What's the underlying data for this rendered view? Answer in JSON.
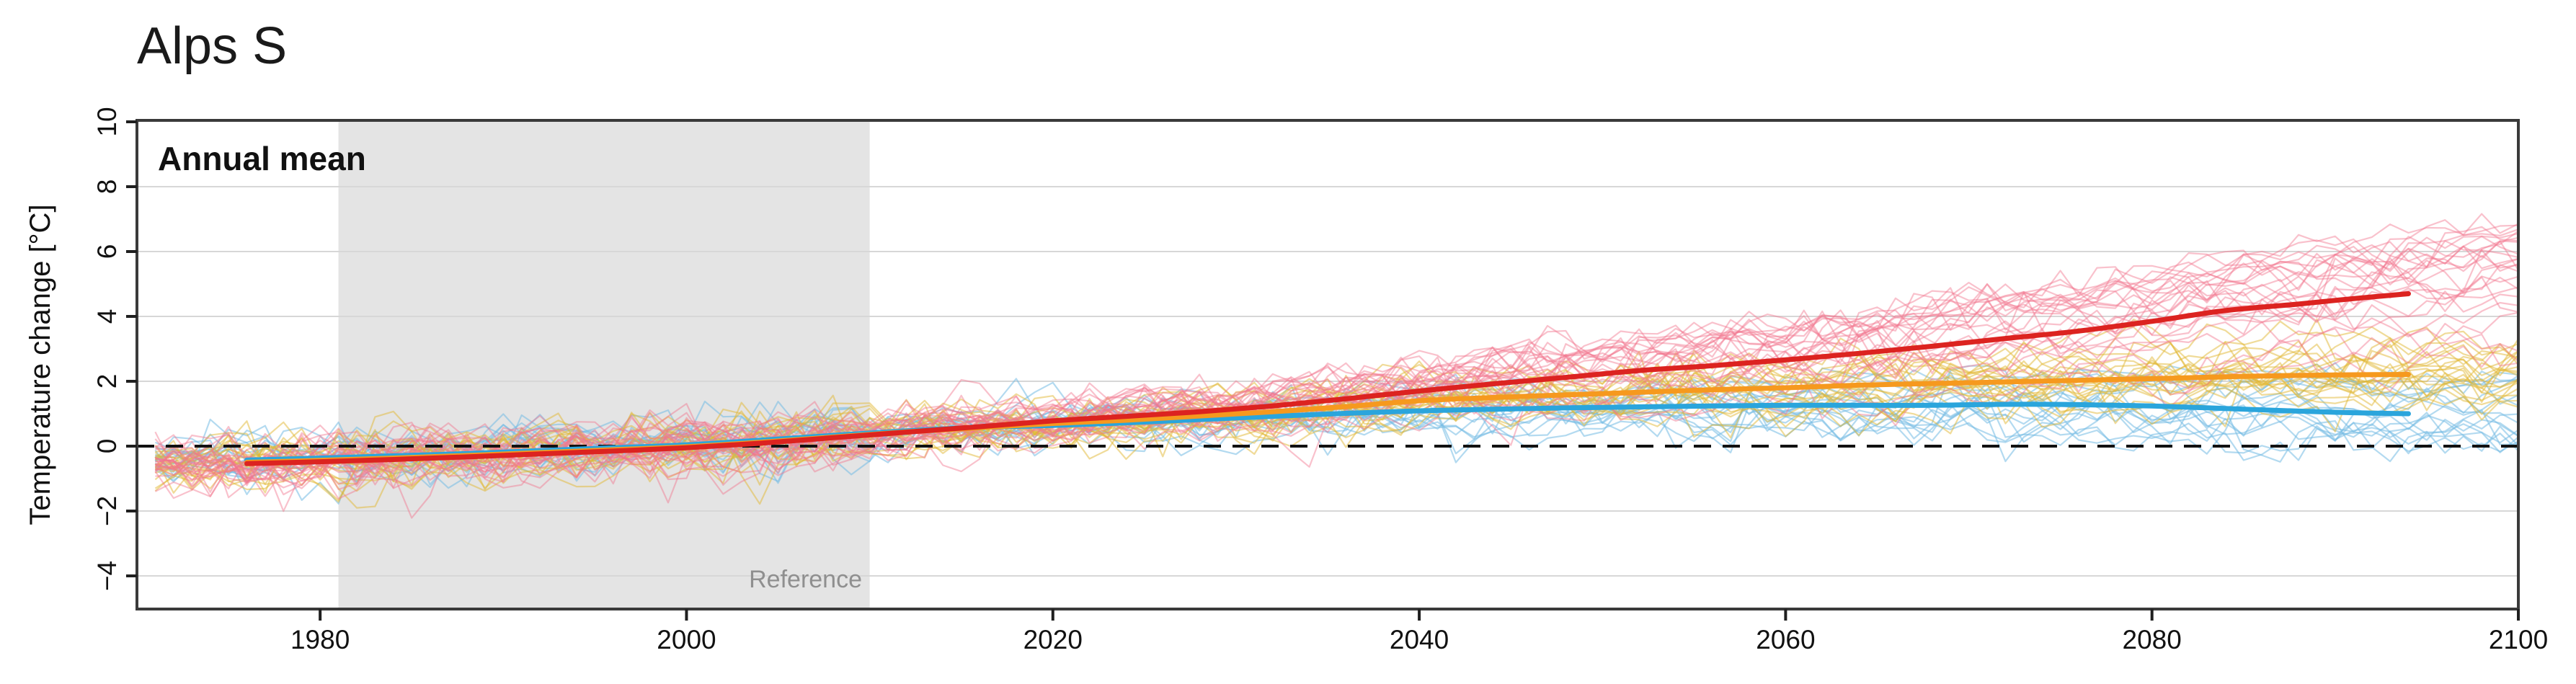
{
  "title": "Alps S",
  "panel_label": "Annual mean",
  "axes": {
    "y_title": "Temperature change [°C]",
    "y_ticks": [
      10,
      8,
      6,
      4,
      2,
      0,
      -2,
      -4
    ],
    "y_tick_labels": [
      "10",
      "8",
      "6",
      "4",
      "2",
      "0",
      "−2",
      "−4"
    ],
    "gridline_values": [
      8,
      6,
      4,
      2,
      -2,
      -4
    ],
    "x_ticks": [
      1980,
      2000,
      2020,
      2040,
      2060,
      2080,
      2100
    ],
    "x_tick_labels": [
      "1980",
      "2000",
      "2020",
      "2040",
      "2060",
      "2080",
      "2100"
    ],
    "x_range": [
      1970,
      2100
    ],
    "y_range": [
      -5,
      10
    ]
  },
  "reference_band": {
    "label": "Reference",
    "start_year": 1981,
    "end_year": 2010,
    "color": "#e4e4e4",
    "label_color": "#8f8f8f"
  },
  "zero_line": {
    "value": 0,
    "style": "dashed",
    "color": "#111111"
  },
  "style": {
    "box_color": "#3a3a3a",
    "grid_color": "#d7d7d7",
    "tick_color": "#1f1f1f",
    "background": "#ffffff"
  },
  "chart_data": {
    "type": "line",
    "title": "Alps S",
    "subtitle": "Annual mean",
    "xlabel": "",
    "ylabel": "Temperature change [°C]",
    "xlim": [
      1970,
      2100
    ],
    "ylim": [
      -5,
      10
    ],
    "grid": "horizontal",
    "legend": "none",
    "annotations": [
      {
        "text": "Reference",
        "x_span": [
          1981,
          2010
        ],
        "type": "shaded-band"
      },
      {
        "text": "zero line",
        "y": 0,
        "type": "dashed-line"
      }
    ],
    "mean_years": [
      1976,
      1980,
      1984,
      1988,
      1992,
      1996,
      2000,
      2004,
      2008,
      2012,
      2016,
      2020,
      2024,
      2028,
      2032,
      2036,
      2040,
      2044,
      2048,
      2052,
      2056,
      2060,
      2064,
      2068,
      2072,
      2076,
      2080,
      2084,
      2088,
      2091,
      2094
    ],
    "series": [
      {
        "name": "blue-mean",
        "color": "#2aa5dc",
        "width": 7,
        "y": [
          -0.43,
          -0.37,
          -0.3,
          -0.23,
          -0.14,
          -0.05,
          0.04,
          0.18,
          0.33,
          0.47,
          0.58,
          0.64,
          0.72,
          0.82,
          0.92,
          1.01,
          1.09,
          1.14,
          1.18,
          1.21,
          1.24,
          1.26,
          1.26,
          1.26,
          1.29,
          1.28,
          1.24,
          1.16,
          1.08,
          1.03,
          1.0
        ]
      },
      {
        "name": "orange-mean",
        "color": "#f6991e",
        "width": 7,
        "y": [
          -0.5,
          -0.44,
          -0.37,
          -0.29,
          -0.2,
          -0.11,
          -0.02,
          0.12,
          0.28,
          0.44,
          0.57,
          0.7,
          0.8,
          0.93,
          1.06,
          1.22,
          1.4,
          1.5,
          1.58,
          1.66,
          1.74,
          1.8,
          1.88,
          1.93,
          1.98,
          2.03,
          2.08,
          2.14,
          2.18,
          2.2,
          2.21
        ]
      },
      {
        "name": "red-mean",
        "color": "#dc2320",
        "width": 7,
        "y": [
          -0.54,
          -0.48,
          -0.41,
          -0.33,
          -0.24,
          -0.15,
          -0.05,
          0.09,
          0.26,
          0.43,
          0.6,
          0.78,
          0.92,
          1.06,
          1.24,
          1.46,
          1.7,
          1.92,
          2.12,
          2.33,
          2.48,
          2.66,
          2.86,
          3.08,
          3.32,
          3.55,
          3.85,
          4.18,
          4.38,
          4.55,
          4.7
        ]
      }
    ],
    "ensembles": [
      {
        "name": "blue-runs",
        "mean_series": "blue-mean",
        "color": "rgba(116,188,228,0.55)",
        "members": 16,
        "year_start": 1971,
        "year_end": 2100,
        "end_spread": 1.1,
        "noise_sd": 0.33,
        "hist_offset": 0.15,
        "seed": 33,
        "end_range_observed": [
          -0.7,
          2.5
        ]
      },
      {
        "name": "yellow-runs",
        "mean_series": "orange-mean",
        "color": "rgba(226,184,52,0.50)",
        "members": 20,
        "year_start": 1971,
        "year_end": 2100,
        "end_spread": 1.15,
        "noise_sd": 0.34,
        "hist_offset": 0.15,
        "seed": 22,
        "end_range_observed": [
          0.8,
          4.3
        ]
      },
      {
        "name": "pink-runs",
        "mean_series": "red-mean",
        "color": "rgba(242,118,142,0.45)",
        "members": 26,
        "year_start": 1971,
        "year_end": 2100,
        "end_spread": 1.9,
        "noise_sd": 0.36,
        "hist_offset": 0.15,
        "seed": 11,
        "end_range_observed": [
          2.5,
          8.0
        ]
      }
    ],
    "historical_envelope": [
      -1.9,
      0.95
    ]
  }
}
